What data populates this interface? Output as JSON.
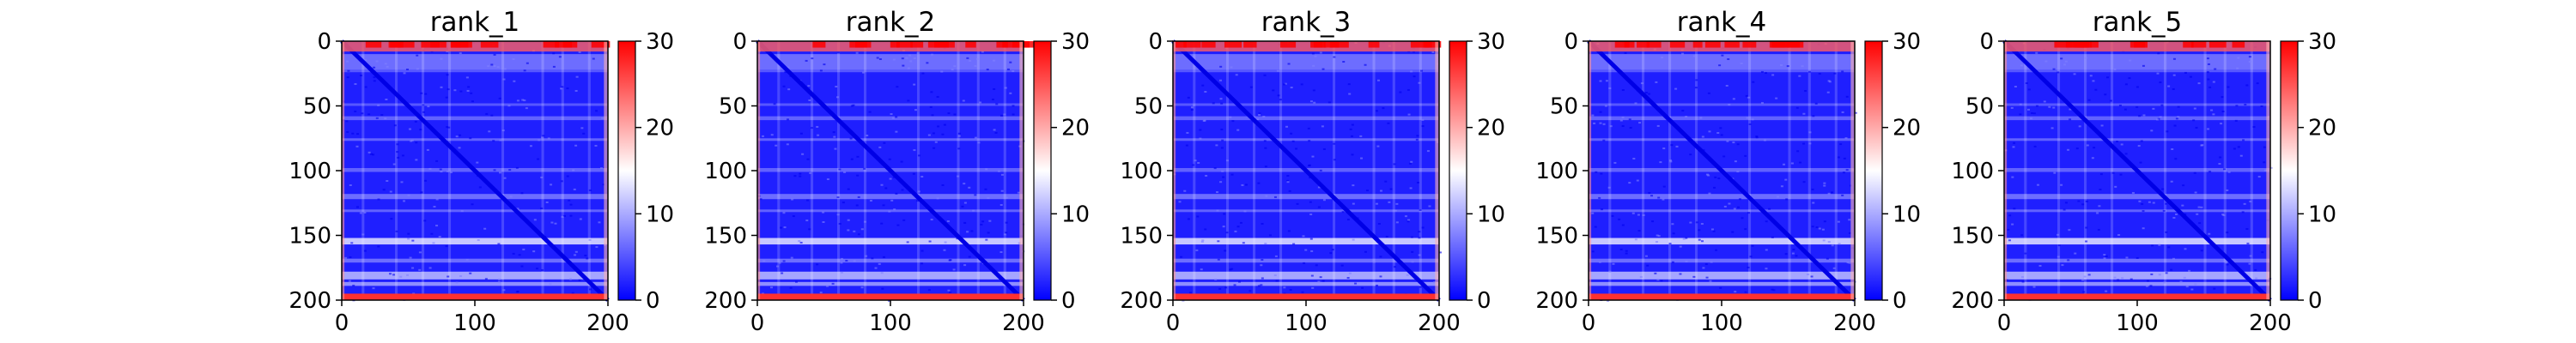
{
  "chart_data": [
    {
      "type": "heatmap",
      "title": "rank_1",
      "x_ticks": [
        0,
        100,
        200
      ],
      "y_ticks": [
        0,
        50,
        100,
        150,
        200
      ],
      "xlim": [
        0,
        200
      ],
      "ylim": [
        200,
        0
      ],
      "colorbar": {
        "min": 0,
        "max": 30,
        "ticks": [
          0,
          10,
          20,
          30
        ],
        "colormap": "bwr",
        "colors": [
          "#0000ff",
          "#ffffff",
          "#ff0000"
        ]
      }
    },
    {
      "type": "heatmap",
      "title": "rank_2",
      "x_ticks": [
        0,
        100,
        200
      ],
      "y_ticks": [
        0,
        50,
        100,
        150,
        200
      ],
      "xlim": [
        0,
        200
      ],
      "ylim": [
        200,
        0
      ],
      "colorbar": {
        "min": 0,
        "max": 30,
        "ticks": [
          0,
          10,
          20,
          30
        ],
        "colormap": "bwr",
        "colors": [
          "#0000ff",
          "#ffffff",
          "#ff0000"
        ]
      }
    },
    {
      "type": "heatmap",
      "title": "rank_3",
      "x_ticks": [
        0,
        100,
        200
      ],
      "y_ticks": [
        0,
        50,
        100,
        150,
        200
      ],
      "xlim": [
        0,
        200
      ],
      "ylim": [
        200,
        0
      ],
      "colorbar": {
        "min": 0,
        "max": 30,
        "ticks": [
          0,
          10,
          20,
          30
        ],
        "colormap": "bwr",
        "colors": [
          "#0000ff",
          "#ffffff",
          "#ff0000"
        ]
      }
    },
    {
      "type": "heatmap",
      "title": "rank_4",
      "x_ticks": [
        0,
        100,
        200
      ],
      "y_ticks": [
        0,
        50,
        100,
        150,
        200
      ],
      "xlim": [
        0,
        200
      ],
      "ylim": [
        200,
        0
      ],
      "colorbar": {
        "min": 0,
        "max": 30,
        "ticks": [
          0,
          10,
          20,
          30
        ],
        "colormap": "bwr",
        "colors": [
          "#0000ff",
          "#ffffff",
          "#ff0000"
        ]
      }
    },
    {
      "type": "heatmap",
      "title": "rank_5",
      "x_ticks": [
        0,
        100,
        200
      ],
      "y_ticks": [
        0,
        50,
        100,
        150,
        200
      ],
      "xlim": [
        0,
        200
      ],
      "ylim": [
        200,
        0
      ],
      "colorbar": {
        "min": 0,
        "max": 30,
        "ticks": [
          0,
          10,
          20,
          30
        ],
        "colormap": "bwr",
        "colors": [
          "#0000ff",
          "#ffffff",
          "#ff0000"
        ]
      }
    }
  ]
}
